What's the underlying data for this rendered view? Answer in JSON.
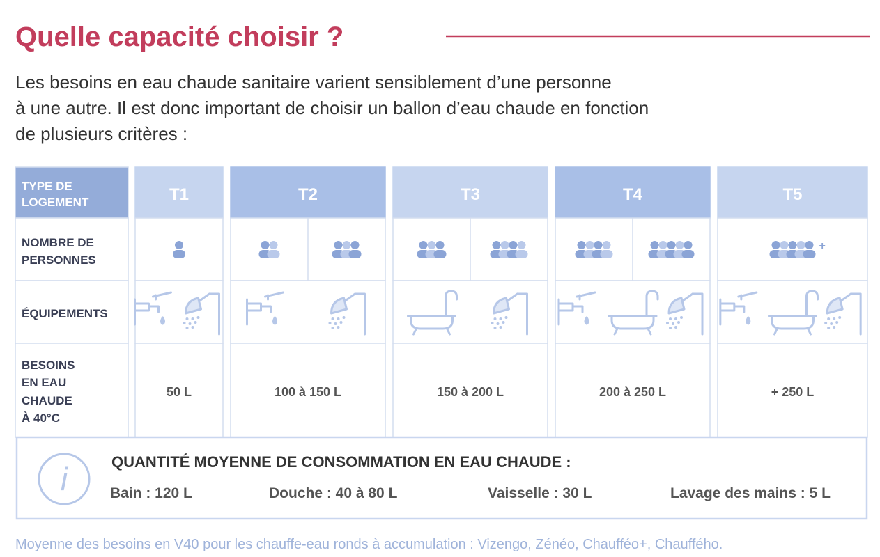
{
  "title": "Quelle capacité choisir ?",
  "intro": [
    "Les besoins en eau chaude sanitaire varient sensiblement d’une personne",
    "à une autre. Il est donc important de choisir un ballon d’eau chaude en fonction",
    "de plusieurs critères :"
  ],
  "table": {
    "row_headers": [
      [
        "TYPE DE",
        "LOGEMENT"
      ],
      [
        "NOMBRE DE",
        "PERSONNES"
      ],
      [
        "ÉQUIPEMENTS"
      ],
      [
        "BESOINS",
        "EN EAU",
        "CHAUDE",
        "À 40°C"
      ]
    ],
    "columns": [
      {
        "type": "T1",
        "persons": [
          1
        ],
        "needs": "50 L"
      },
      {
        "type": "T2",
        "persons": [
          2,
          3
        ],
        "needs": "100 à 150 L"
      },
      {
        "type": "T3",
        "persons": [
          3,
          4
        ],
        "needs": "150 à 200 L"
      },
      {
        "type": "T4",
        "persons": [
          4,
          5
        ],
        "needs": "200 à 250 L"
      },
      {
        "type": "T5",
        "persons": [
          5
        ],
        "persons_more": "+",
        "needs": "+ 250 L"
      }
    ]
  },
  "info": {
    "heading": "QUANTITÉ MOYENNE DE CONSOMMATION EN EAU CHAUDE :",
    "items": [
      "Bain : 120 L",
      "Douche : 40 à 80 L",
      "Vaisselle : 30 L",
      "Lavage des mains : 5 L"
    ]
  },
  "footnote": "Moyenne des besoins en V40 pour les chauffe-eau ronds à accumulation : Vizengo, Zénéo, Chaufféo+, Chauffého."
}
